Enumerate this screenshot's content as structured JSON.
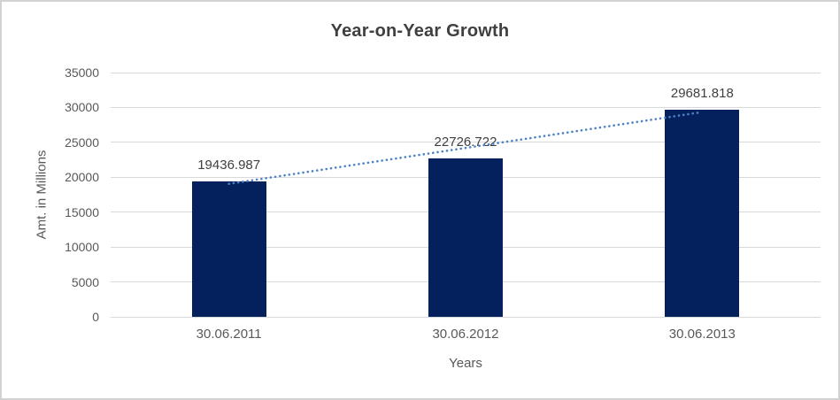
{
  "chart": {
    "title": "Year-on-Year Growth",
    "x_axis_title": "Years",
    "y_axis_title": "Amt. in Millions"
  },
  "chart_data": {
    "type": "bar",
    "title": "Year-on-Year Growth",
    "categories": [
      "30.06.2011",
      "30.06.2012",
      "30.06.2013"
    ],
    "values": [
      19436.987,
      22726.722,
      29681.818
    ],
    "data_labels": [
      "19436.987",
      "22726.722",
      "29681.818"
    ],
    "xlabel": "Years",
    "ylabel": "Amt. in Millions",
    "ylim": [
      0,
      35000
    ],
    "yticks": [
      0,
      5000,
      10000,
      15000,
      20000,
      25000,
      30000,
      35000
    ],
    "grid": "horizontal",
    "legend": "none",
    "bar_color": "#04215e",
    "gridline_color": "#d9d9d9",
    "label_color": "#404040",
    "axis_text_color": "#595959",
    "trendline": {
      "type": "linear",
      "style": "dotted",
      "color": "#4d82c6"
    }
  }
}
